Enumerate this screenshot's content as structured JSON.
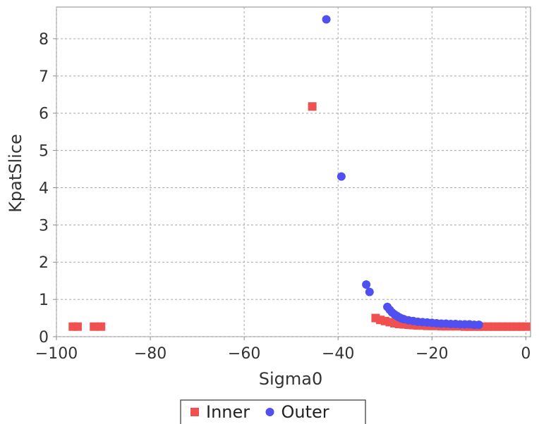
{
  "chart_data": {
    "type": "scatter",
    "title": "",
    "xlabel": "Sigma0",
    "ylabel": "KpatSlice",
    "xlim": [
      -100,
      1
    ],
    "ylim": [
      0,
      8.85
    ],
    "x_ticks": [
      -100,
      -80,
      -60,
      -40,
      -20,
      0
    ],
    "x_tick_labels": [
      "−100",
      "−80",
      "−60",
      "−40",
      "−20",
      "0"
    ],
    "y_ticks": [
      0,
      1,
      2,
      3,
      4,
      5,
      6,
      7,
      8
    ],
    "y_tick_labels": [
      "0",
      "1",
      "2",
      "3",
      "4",
      "5",
      "6",
      "7",
      "8"
    ],
    "grid": true,
    "legend_position": "bottom-center",
    "series": [
      {
        "name": "Inner",
        "marker": "square",
        "color": "#f05050",
        "points": [
          [
            -96.5,
            0.27
          ],
          [
            -95.5,
            0.27
          ],
          [
            -92,
            0.27
          ],
          [
            -90.5,
            0.27
          ],
          [
            -45.5,
            6.18
          ],
          [
            -32,
            0.5
          ],
          [
            -31,
            0.45
          ],
          [
            -30,
            0.42
          ],
          [
            -29,
            0.39
          ],
          [
            -28,
            0.36
          ],
          [
            -27,
            0.34
          ],
          [
            -26,
            0.33
          ],
          [
            -25,
            0.32
          ],
          [
            -24,
            0.31
          ],
          [
            -23,
            0.3
          ],
          [
            -22,
            0.3
          ],
          [
            -21,
            0.29
          ],
          [
            -20,
            0.29
          ],
          [
            -19,
            0.29
          ],
          [
            -18,
            0.28
          ],
          [
            -17,
            0.28
          ],
          [
            -16,
            0.28
          ],
          [
            -15,
            0.28
          ],
          [
            -14,
            0.28
          ],
          [
            -13,
            0.27
          ],
          [
            -12,
            0.27
          ],
          [
            -11,
            0.27
          ],
          [
            -10,
            0.27
          ],
          [
            -9,
            0.27
          ],
          [
            -8,
            0.27
          ],
          [
            -7,
            0.27
          ],
          [
            -6,
            0.27
          ],
          [
            -5,
            0.27
          ],
          [
            -4,
            0.27
          ],
          [
            -3,
            0.27
          ],
          [
            -2,
            0.27
          ],
          [
            -1,
            0.27
          ],
          [
            0,
            0.27
          ]
        ]
      },
      {
        "name": "Outer",
        "marker": "circle",
        "color": "#5050f0",
        "points": [
          [
            -42.5,
            8.52
          ],
          [
            -39.3,
            4.3
          ],
          [
            -34,
            1.4
          ],
          [
            -33.3,
            1.2
          ],
          [
            -29.5,
            0.8
          ],
          [
            -29,
            0.72
          ],
          [
            -28.5,
            0.65
          ],
          [
            -28,
            0.6
          ],
          [
            -27.5,
            0.56
          ],
          [
            -27,
            0.52
          ],
          [
            -26.5,
            0.49
          ],
          [
            -26,
            0.47
          ],
          [
            -25,
            0.44
          ],
          [
            -24,
            0.42
          ],
          [
            -23,
            0.4
          ],
          [
            -22,
            0.39
          ],
          [
            -21,
            0.38
          ],
          [
            -20,
            0.37
          ],
          [
            -19,
            0.36
          ],
          [
            -18,
            0.35
          ],
          [
            -17,
            0.35
          ],
          [
            -16,
            0.34
          ],
          [
            -15,
            0.34
          ],
          [
            -14,
            0.33
          ],
          [
            -13,
            0.33
          ],
          [
            -12,
            0.33
          ],
          [
            -11,
            0.32
          ],
          [
            -10,
            0.32
          ]
        ]
      }
    ]
  }
}
